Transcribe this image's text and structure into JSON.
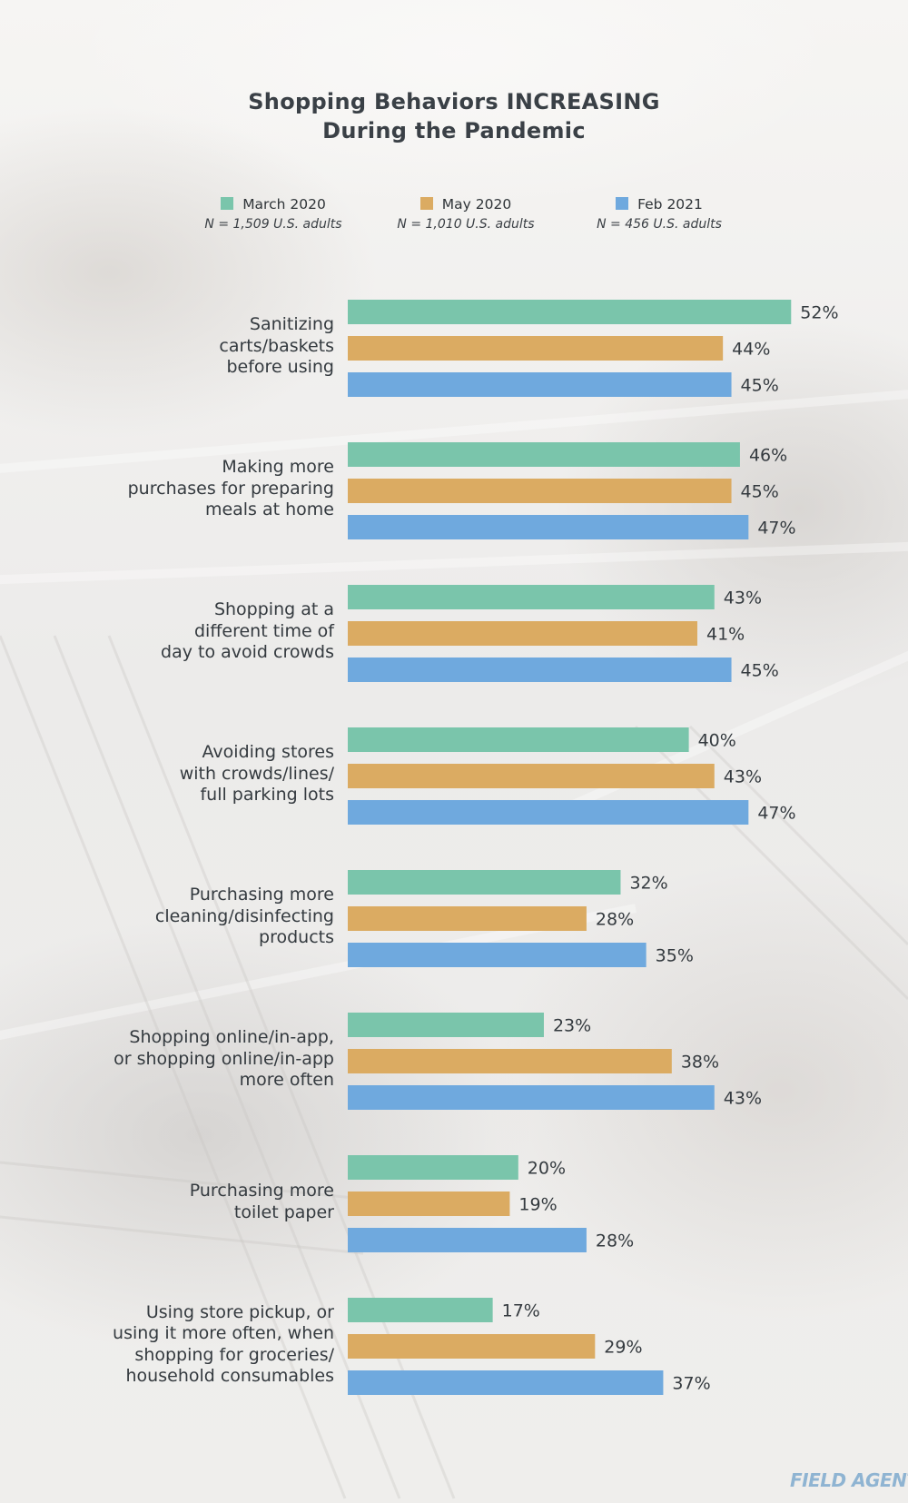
{
  "colors": {
    "march": "#7ac5ab",
    "may": "#dbab62",
    "feb": "#6fa9de"
  },
  "chart_data": {
    "type": "bar",
    "orientation": "horizontal",
    "title": "Shopping Behaviors INCREASING During the Pandemic",
    "title_lines": [
      "Shopping Behaviors INCREASING",
      "During the Pandemic"
    ],
    "legend": [
      {
        "name": "March 2020",
        "n": "N = 1,509 U.S. adults",
        "color": "#7ac5ab"
      },
      {
        "name": "May 2020",
        "n": "N = 1,010 U.S. adults",
        "color": "#dbab62"
      },
      {
        "name": "Feb 2021",
        "n": "N = 456 U.S. adults",
        "color": "#6fa9de"
      }
    ],
    "categories": [
      [
        "Sanitizing",
        "carts/baskets",
        "before using"
      ],
      [
        "Making more",
        "purchases for preparing",
        "meals at home"
      ],
      [
        "Shopping at a",
        "different time of",
        "day to avoid crowds"
      ],
      [
        "Avoiding stores",
        "with crowds/lines/",
        "full parking lots"
      ],
      [
        "Purchasing more",
        "cleaning/disinfecting",
        "products"
      ],
      [
        "Shopping online/in-app,",
        "or shopping online/in-app",
        "more often"
      ],
      [
        "Purchasing more",
        "toilet paper"
      ],
      [
        "Using store pickup, or",
        "using it more often, when",
        "shopping for groceries/",
        "household consumables"
      ]
    ],
    "series": [
      {
        "name": "March 2020",
        "values": [
          52,
          46,
          43,
          40,
          32,
          23,
          20,
          17
        ]
      },
      {
        "name": "May 2020",
        "values": [
          44,
          45,
          41,
          43,
          28,
          38,
          19,
          29
        ]
      },
      {
        "name": "Feb 2021",
        "values": [
          45,
          47,
          45,
          47,
          35,
          43,
          28,
          37
        ]
      }
    ],
    "value_suffix": "%",
    "xlim": [
      0,
      52
    ],
    "grid": false,
    "legend_placement": "top"
  },
  "brand": "FIELD AGENT"
}
